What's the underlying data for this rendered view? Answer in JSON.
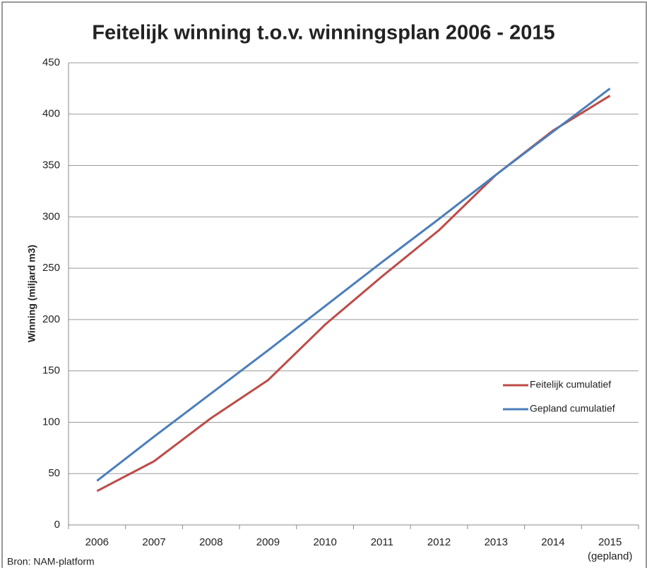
{
  "chart_data": {
    "type": "line",
    "title": "Feitelijk winning t.o.v. winningsplan 2006 - 2015",
    "y_label": "Winning (miljard m3)",
    "categories": [
      "2006",
      "2007",
      "2008",
      "2009",
      "2010",
      "2011",
      "2012",
      "2013",
      "2014",
      "2015"
    ],
    "category_note": "(gepland)",
    "series": [
      {
        "name": "Feitelijk cumulatief",
        "color": "#be4b48",
        "values": [
          33,
          62,
          104,
          141,
          195,
          242,
          287,
          341,
          384,
          418
        ]
      },
      {
        "name": "Gepland cumulatief",
        "color": "#4a7ebb",
        "values": [
          43,
          86,
          128,
          170,
          213,
          256,
          298,
          341,
          383,
          425
        ]
      }
    ],
    "ylim": [
      0,
      450
    ],
    "yticks": [
      0,
      50,
      100,
      150,
      200,
      250,
      300,
      350,
      400,
      450
    ],
    "grid": true,
    "legend": "right",
    "source": "Bron: NAM-platform"
  }
}
